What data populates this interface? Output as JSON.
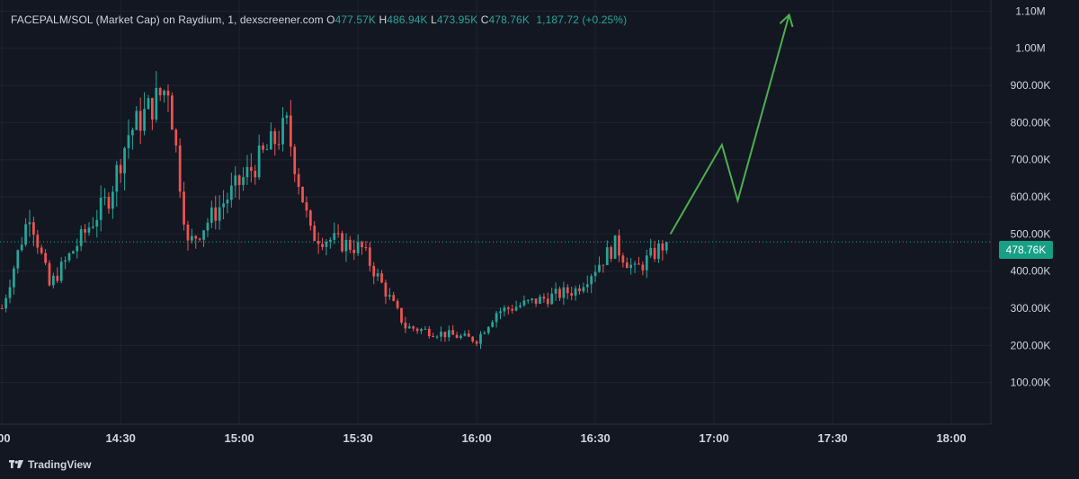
{
  "header": {
    "pair_label": "FACEPALM/SOL (Market Cap) on Raydium, 1, dexscreener.com",
    "o_key": "O",
    "o_val": "477.57K",
    "h_key": "H",
    "h_val": "486.94K",
    "l_key": "L",
    "l_val": "473.95K",
    "c_key": "C",
    "c_val": "478.76K",
    "change": "1,187.72 (+0.25%)"
  },
  "last_price_label": "478.76K",
  "brand": {
    "name": "TradingView"
  },
  "colors": {
    "background": "#131722",
    "grid": "#1f2330",
    "up": "#26a69a",
    "down": "#ef5350",
    "projection": "#4caf50",
    "text": "#d1d4dc",
    "price_tag": "#16a085"
  },
  "chart_data": {
    "type": "candlestick",
    "title": "",
    "xlabel": "",
    "ylabel": "",
    "x_ticks": [
      {
        "label": ":00",
        "t": 840
      },
      {
        "label": "14:30",
        "t": 870
      },
      {
        "label": "15:00",
        "t": 900
      },
      {
        "label": "15:30",
        "t": 930
      },
      {
        "label": "16:00",
        "t": 960
      },
      {
        "label": "16:30",
        "t": 990
      },
      {
        "label": "17:00",
        "t": 1020
      },
      {
        "label": "17:30",
        "t": 1050
      },
      {
        "label": "18:00",
        "t": 1080
      }
    ],
    "y_ticks": [
      {
        "label": "100.00K",
        "v": 100
      },
      {
        "label": "200.00K",
        "v": 200
      },
      {
        "label": "300.00K",
        "v": 300
      },
      {
        "label": "400.00K",
        "v": 400
      },
      {
        "label": "500.00K",
        "v": 500
      },
      {
        "label": "600.00K",
        "v": 600
      },
      {
        "label": "700.00K",
        "v": 700
      },
      {
        "label": "800.00K",
        "v": 800
      },
      {
        "label": "900.00K",
        "v": 900
      },
      {
        "label": "1.00M",
        "v": 1000
      },
      {
        "label": "1.10M",
        "v": 1100
      }
    ],
    "x_range_minutes": [
      839.5,
      1090
    ],
    "y_range": [
      0,
      1130
    ],
    "last_price": 478.76,
    "key_points": [
      {
        "time": "14:00",
        "value": 300
      },
      {
        "time": "14:07",
        "value": 560
      },
      {
        "time": "14:12",
        "value": 360
      },
      {
        "time": "14:27",
        "value": 600
      },
      {
        "time": "14:32",
        "value": 770
      },
      {
        "time": "14:42",
        "value": 900
      },
      {
        "time": "14:47",
        "value": 470
      },
      {
        "time": "15:05",
        "value": 700
      },
      {
        "time": "15:12",
        "value": 790
      },
      {
        "time": "15:18",
        "value": 500
      },
      {
        "time": "15:31",
        "value": 460
      },
      {
        "time": "15:42",
        "value": 250
      },
      {
        "time": "16:00",
        "value": 215
      },
      {
        "time": "16:05",
        "value": 290
      },
      {
        "time": "16:25",
        "value": 350
      },
      {
        "time": "16:35",
        "value": 470
      },
      {
        "time": "16:40",
        "value": 400
      },
      {
        "time": "16:48",
        "value": 478.76
      }
    ],
    "projection_path": [
      {
        "time": "16:49",
        "value": 500
      },
      {
        "time": "17:02",
        "value": 740
      },
      {
        "time": "17:06",
        "value": 590
      },
      {
        "time": "17:19",
        "value": 1090
      }
    ]
  }
}
